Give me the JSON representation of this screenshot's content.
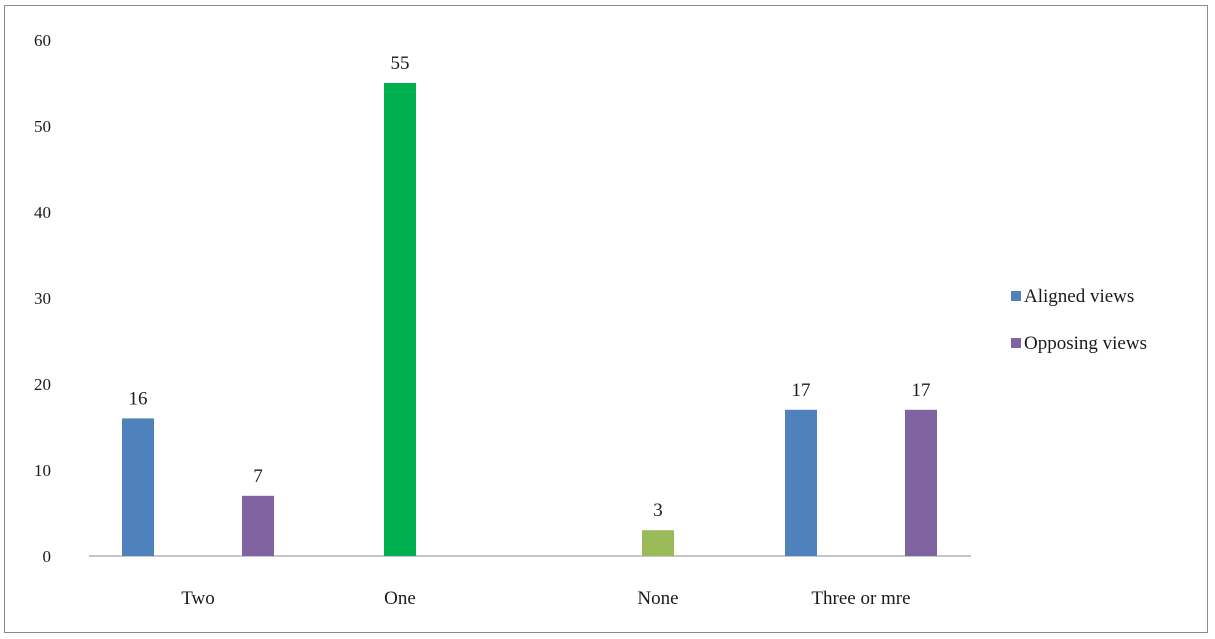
{
  "chart_data": {
    "type": "bar",
    "ylim": [
      0,
      60
    ],
    "yticks": [
      "0",
      "10",
      "20",
      "30",
      "40",
      "50",
      "60"
    ],
    "categories": [
      "Two",
      "One",
      "None",
      "Three or mre"
    ],
    "bars": [
      {
        "category": "Two",
        "value": 16,
        "label": "16",
        "color": "#4f81bd"
      },
      {
        "category": "Two",
        "value": 7,
        "label": "7",
        "color": "#8064a2"
      },
      {
        "category": "One",
        "value": 55,
        "label": "55",
        "color": "#00b050"
      },
      {
        "category": "None",
        "value": 3,
        "label": "3",
        "color": "#9bbb59"
      },
      {
        "category": "Three or mre",
        "value": 17,
        "label": "17",
        "color": "#4f81bd"
      },
      {
        "category": "Three or mre",
        "value": 17,
        "label": "17",
        "color": "#8064a2"
      }
    ],
    "legend": [
      {
        "name": "Aligned views",
        "color": "#4f81bd"
      },
      {
        "name": "Opposing views",
        "color": "#8064a2"
      }
    ],
    "legend_position": "right",
    "grid": false
  }
}
